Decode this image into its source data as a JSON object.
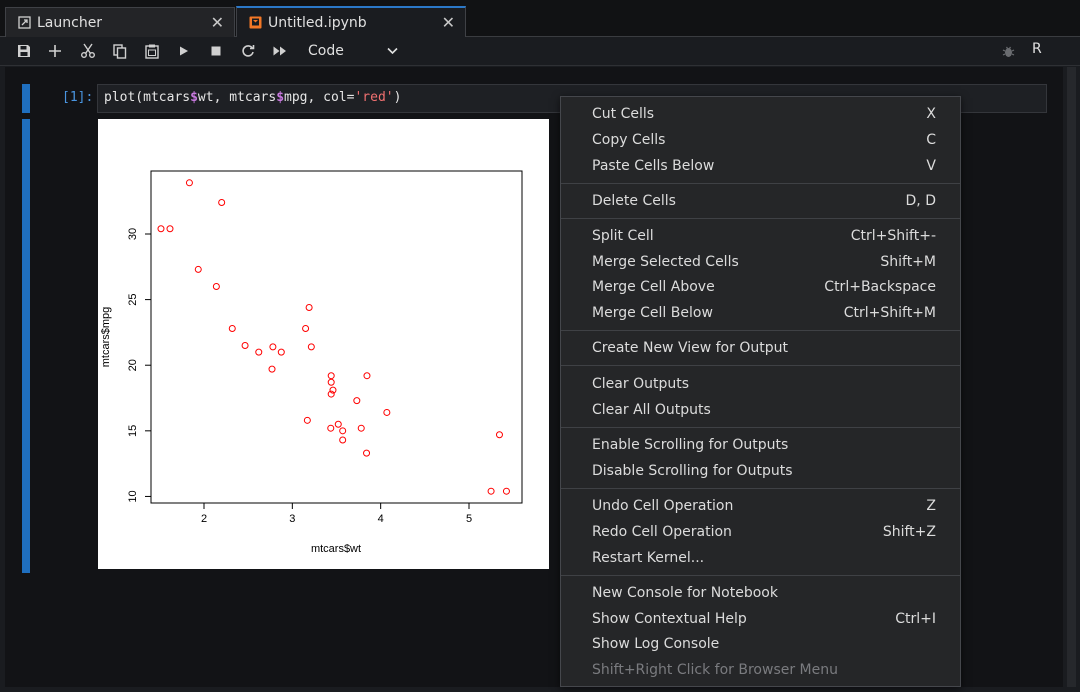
{
  "tabs": [
    {
      "label": "Launcher",
      "icon": "launcher-icon",
      "active": false
    },
    {
      "label": "Untitled.ipynb",
      "icon": "notebook-icon",
      "active": true
    }
  ],
  "toolbar": {
    "buttons": [
      "save-icon",
      "add-cell-icon",
      "cut-icon",
      "copy-icon",
      "paste-icon",
      "run-icon",
      "stop-icon",
      "restart-icon",
      "run-all-icon"
    ],
    "cell_type": "Code",
    "kernel": "R"
  },
  "cell": {
    "prompt": "[1]:",
    "code": {
      "pre1": "plot(mtcars",
      "dollar1": "$",
      "mid": "wt, mtcars",
      "dollar2": "$",
      "post": "mpg, col=",
      "string": "'red'",
      "end": ")"
    }
  },
  "chart_data": {
    "type": "scatter",
    "xlabel": "mtcars$wt",
    "ylabel": "mtcars$mpg",
    "xlim": [
      1.4,
      5.6
    ],
    "ylim": [
      9.5,
      34.8
    ],
    "xticks": [
      "2",
      "3",
      "4",
      "5"
    ],
    "yticks": [
      "10",
      "15",
      "20",
      "25",
      "30"
    ],
    "color": "#ff0000",
    "points": [
      [
        2.62,
        21.0
      ],
      [
        2.875,
        21.0
      ],
      [
        2.32,
        22.8
      ],
      [
        3.215,
        21.4
      ],
      [
        3.44,
        18.7
      ],
      [
        3.46,
        18.1
      ],
      [
        3.57,
        14.3
      ],
      [
        3.19,
        24.4
      ],
      [
        3.15,
        22.8
      ],
      [
        3.44,
        19.2
      ],
      [
        3.44,
        17.8
      ],
      [
        4.07,
        16.4
      ],
      [
        3.73,
        17.3
      ],
      [
        3.78,
        15.2
      ],
      [
        5.25,
        10.4
      ],
      [
        5.424,
        10.4
      ],
      [
        5.345,
        14.7
      ],
      [
        2.2,
        32.4
      ],
      [
        1.615,
        30.4
      ],
      [
        1.835,
        33.9
      ],
      [
        2.465,
        21.5
      ],
      [
        3.52,
        15.5
      ],
      [
        3.435,
        15.2
      ],
      [
        3.84,
        13.3
      ],
      [
        3.845,
        19.2
      ],
      [
        1.935,
        27.3
      ],
      [
        2.14,
        26.0
      ],
      [
        1.513,
        30.4
      ],
      [
        3.17,
        15.8
      ],
      [
        2.77,
        19.7
      ],
      [
        3.57,
        15.0
      ],
      [
        2.78,
        21.4
      ]
    ]
  },
  "context_menu": {
    "items": [
      {
        "label": "Cut Cells",
        "shortcut": "X"
      },
      {
        "label": "Copy Cells",
        "shortcut": "C"
      },
      {
        "label": "Paste Cells Below",
        "shortcut": "V"
      },
      {
        "label": "Delete Cells",
        "shortcut": "D, D"
      },
      {
        "label": "Split Cell",
        "shortcut": "Ctrl+Shift+-"
      },
      {
        "label": "Merge Selected Cells",
        "shortcut": "Shift+M"
      },
      {
        "label": "Merge Cell Above",
        "shortcut": "Ctrl+Backspace"
      },
      {
        "label": "Merge Cell Below",
        "shortcut": "Ctrl+Shift+M"
      },
      {
        "label": "Create New View for Output",
        "shortcut": ""
      },
      {
        "label": "Clear Outputs",
        "shortcut": ""
      },
      {
        "label": "Clear All Outputs",
        "shortcut": ""
      },
      {
        "label": "Enable Scrolling for Outputs",
        "shortcut": ""
      },
      {
        "label": "Disable Scrolling for Outputs",
        "shortcut": ""
      },
      {
        "label": "Undo Cell Operation",
        "shortcut": "Z"
      },
      {
        "label": "Redo Cell Operation",
        "shortcut": "Shift+Z"
      },
      {
        "label": "Restart Kernel...",
        "shortcut": ""
      },
      {
        "label": "New Console for Notebook",
        "shortcut": ""
      },
      {
        "label": "Show Contextual Help",
        "shortcut": "Ctrl+I"
      },
      {
        "label": "Show Log Console",
        "shortcut": ""
      },
      {
        "label": "Shift+Right Click for Browser Menu",
        "shortcut": ""
      }
    ]
  }
}
